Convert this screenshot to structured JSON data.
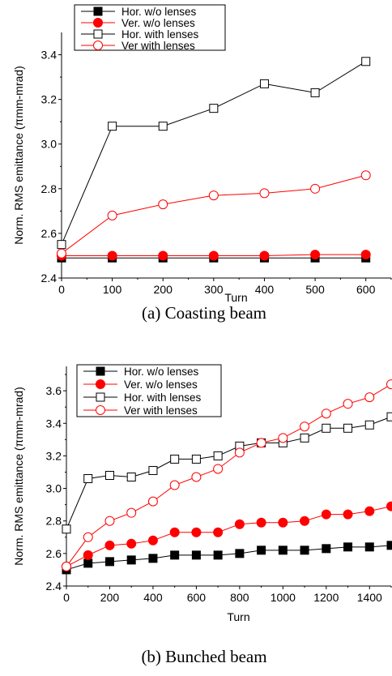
{
  "chart_data": [
    {
      "type": "line",
      "caption": "(a)   Coasting beam",
      "xlabel": "Turn",
      "ylabel": "Norm. RMS emittance (πmm-mrad)",
      "xlim": [
        0,
        650
      ],
      "ylim": [
        2.4,
        3.5
      ],
      "xticks": [
        "0",
        "100",
        "200",
        "300",
        "400",
        "500",
        "600"
      ],
      "yticks": [
        "2.4",
        "2.6",
        "2.8",
        "3.0",
        "3.2",
        "3.4"
      ],
      "legend_position": "top-left",
      "series": [
        {
          "name": "Hor. w/o lenses",
          "color": "#000000",
          "marker": "square-filled",
          "x": [
            0,
            100,
            200,
            300,
            400,
            500,
            600
          ],
          "y": [
            2.49,
            2.49,
            2.49,
            2.49,
            2.49,
            2.49,
            2.49
          ]
        },
        {
          "name": "Ver. w/o lenses",
          "color": "#ff0000",
          "marker": "circle-filled",
          "x": [
            0,
            100,
            200,
            300,
            400,
            500,
            600
          ],
          "y": [
            2.5,
            2.5,
            2.5,
            2.5,
            2.5,
            2.505,
            2.505
          ]
        },
        {
          "name": "Hor. with lenses",
          "color": "#000000",
          "marker": "square-open",
          "x": [
            0,
            100,
            200,
            300,
            400,
            500,
            600
          ],
          "y": [
            2.55,
            3.08,
            3.08,
            3.16,
            3.27,
            3.23,
            3.37
          ]
        },
        {
          "name": "Ver with lenses",
          "color": "#ff0000",
          "marker": "circle-open",
          "x": [
            0,
            100,
            200,
            300,
            400,
            500,
            600
          ],
          "y": [
            2.51,
            2.68,
            2.73,
            2.77,
            2.78,
            2.8,
            2.86
          ]
        }
      ]
    },
    {
      "type": "line",
      "caption": "(b) Bunched beam",
      "xlabel": "Turn",
      "ylabel": "Norm. RMS emittance (πmm-mrad)",
      "xlim": [
        0,
        1500
      ],
      "ylim": [
        2.4,
        3.75
      ],
      "xticks": [
        "0",
        "200",
        "400",
        "600",
        "800",
        "1000",
        "1200",
        "1400"
      ],
      "yticks": [
        "2.4",
        "2.6",
        "2.8",
        "3.0",
        "3.2",
        "3.4",
        "3.6"
      ],
      "legend_position": "top-left",
      "series": [
        {
          "name": "Hor. w/o lenses",
          "color": "#000000",
          "marker": "square-filled",
          "x": [
            0,
            100,
            200,
            300,
            400,
            500,
            600,
            700,
            800,
            900,
            1000,
            1100,
            1200,
            1300,
            1400,
            1500
          ],
          "y": [
            2.5,
            2.54,
            2.55,
            2.56,
            2.57,
            2.59,
            2.59,
            2.59,
            2.6,
            2.62,
            2.62,
            2.62,
            2.63,
            2.64,
            2.64,
            2.65
          ]
        },
        {
          "name": "Ver. w/o lenses",
          "color": "#ff0000",
          "marker": "circle-filled",
          "x": [
            0,
            100,
            200,
            300,
            400,
            500,
            600,
            700,
            800,
            900,
            1000,
            1100,
            1200,
            1300,
            1400,
            1500
          ],
          "y": [
            2.52,
            2.59,
            2.65,
            2.66,
            2.68,
            2.73,
            2.73,
            2.73,
            2.78,
            2.79,
            2.79,
            2.8,
            2.84,
            2.84,
            2.86,
            2.89
          ]
        },
        {
          "name": "Hor. with lenses",
          "color": "#000000",
          "marker": "square-open",
          "x": [
            0,
            100,
            200,
            300,
            400,
            500,
            600,
            700,
            800,
            900,
            1000,
            1100,
            1200,
            1300,
            1400,
            1500
          ],
          "y": [
            2.75,
            3.06,
            3.08,
            3.07,
            3.11,
            3.18,
            3.18,
            3.2,
            3.26,
            3.28,
            3.28,
            3.31,
            3.37,
            3.37,
            3.39,
            3.44
          ]
        },
        {
          "name": "Ver with lenses",
          "color": "#ff0000",
          "marker": "circle-open",
          "x": [
            0,
            100,
            200,
            300,
            400,
            500,
            600,
            700,
            800,
            900,
            1000,
            1100,
            1200,
            1300,
            1400,
            1500
          ],
          "y": [
            2.52,
            2.7,
            2.8,
            2.85,
            2.92,
            3.02,
            3.07,
            3.12,
            3.22,
            3.28,
            3.31,
            3.38,
            3.46,
            3.52,
            3.56,
            3.64
          ]
        }
      ]
    }
  ]
}
